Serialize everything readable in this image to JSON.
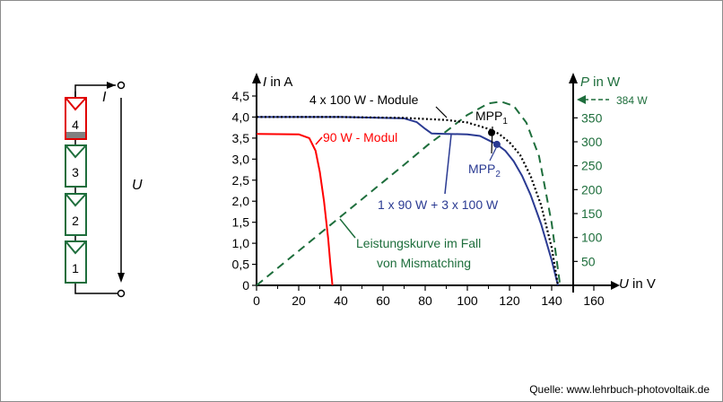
{
  "colors": {
    "module_normal": "#1e6e3c",
    "module_shaded": "#e00000",
    "series_4x100": "#000000",
    "series_mismatch": "#2a3a92",
    "series_90w": "#ff0000",
    "power": "#1e6e3c"
  },
  "circuit": {
    "modules": [
      "1",
      "2",
      "3",
      "4"
    ],
    "current_label": "I",
    "voltage_label": "U",
    "shaded_module": "4"
  },
  "chart_data": {
    "type": "line",
    "xlabel_var": "U",
    "xlabel_unit": " in V",
    "ylabel_var": "I",
    "ylabel_unit": " in A",
    "y2label_var": "P",
    "y2label_unit": " in W",
    "xlim": [
      0,
      160
    ],
    "ylim": [
      0,
      4.5
    ],
    "y2lim": [
      0,
      395
    ],
    "xticks": [
      "0",
      "20",
      "40",
      "60",
      "80",
      "100",
      "120",
      "140",
      "160"
    ],
    "yticks": [
      "0",
      "0,5",
      "1,0",
      "1,5",
      "2,0",
      "2,5",
      "3,0",
      "3,5",
      "4,0",
      "4,5"
    ],
    "y2ticks": [
      "50",
      "100",
      "150",
      "200",
      "250",
      "300",
      "350"
    ],
    "series": [
      {
        "name": "4 x 100 W - Module",
        "style": "dotted",
        "axis": "left",
        "x": [
          0,
          40,
          70,
          90,
          100,
          110,
          115,
          120,
          125,
          130,
          135,
          140,
          143
        ],
        "y": [
          4.0,
          4.0,
          3.98,
          3.93,
          3.87,
          3.72,
          3.6,
          3.4,
          3.1,
          2.6,
          1.9,
          0.9,
          0
        ]
      },
      {
        "name": "1 x 90 W + 3 x 100 W",
        "style": "solid",
        "axis": "left",
        "x": [
          0,
          40,
          70,
          76,
          80,
          83,
          90,
          100,
          106,
          110,
          114,
          118,
          122,
          126,
          130,
          135,
          140,
          143
        ],
        "y": [
          4.0,
          4.0,
          3.97,
          3.88,
          3.72,
          3.61,
          3.6,
          3.59,
          3.55,
          3.45,
          3.35,
          3.2,
          2.95,
          2.6,
          2.15,
          1.45,
          0.6,
          0
        ]
      },
      {
        "name": "90 W - Modul",
        "style": "solid",
        "axis": "left",
        "x": [
          0,
          20,
          25,
          28,
          30,
          32,
          34,
          35,
          36
        ],
        "y": [
          3.6,
          3.59,
          3.5,
          3.2,
          2.7,
          2.0,
          1.1,
          0.5,
          0
        ]
      },
      {
        "name": "Leistungskurve  im Fall von Mismatching",
        "style": "dashed",
        "axis": "right",
        "x": [
          0,
          20,
          40,
          60,
          70,
          82,
          90,
          100,
          110,
          116,
          122,
          128,
          134,
          140,
          144
        ],
        "y": [
          0,
          72,
          144,
          216,
          252,
          296,
          322,
          356,
          380,
          384,
          375,
          340,
          270,
          130,
          0
        ]
      }
    ],
    "points": [
      {
        "label": "MPP",
        "sub": "1",
        "x": 111.5,
        "y": 3.63,
        "color": "#000000"
      },
      {
        "label": "MPP",
        "sub": "2",
        "x": 114,
        "y": 3.35,
        "color": "#2a3a92"
      }
    ],
    "annotations": {
      "max_power": "384 W",
      "label_4x100": "4 x 100 W - Module",
      "label_90w": "90 W - Modul",
      "label_mismatch": "1 x 90 W + 3 x 100 W",
      "label_power_1": "Leistungskurve  im Fall",
      "label_power_2": "von Mismatching"
    }
  },
  "source": "Quelle: www.lehrbuch-photovoltaik.de"
}
